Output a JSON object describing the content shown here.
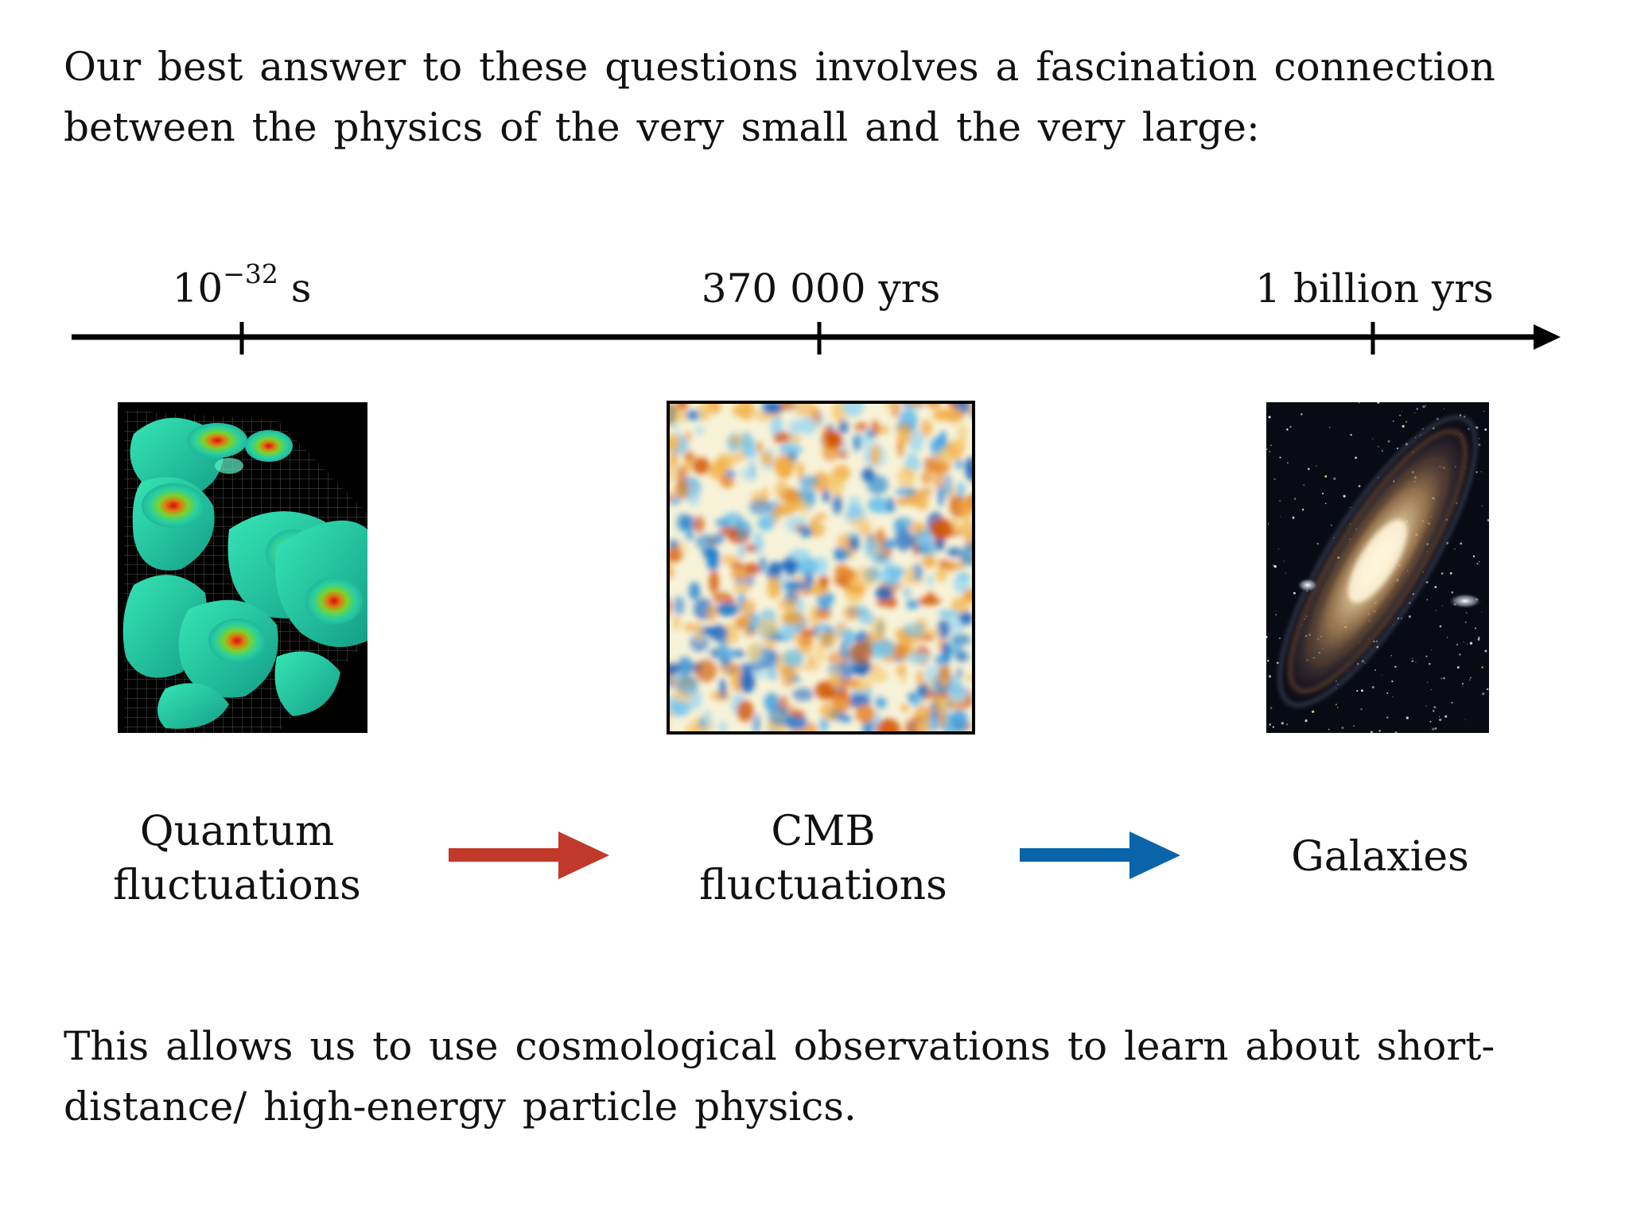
{
  "intro_text": "Our best answer to these questions involves a fascination connection between the physics of the very small and the very large:",
  "outro_text": "This allows us to use cosmological observations to learn about short-distance/ high-energy particle physics.",
  "timeline": {
    "ticks": [
      {
        "base": "10",
        "exponent": "−32",
        "unit": " s"
      },
      {
        "label": "370 000 yrs"
      },
      {
        "label": "1 billion yrs"
      }
    ]
  },
  "stages": [
    {
      "caption_line1": "Quantum",
      "caption_line2": "fluctuations",
      "image": "quantum-fluctuation-render"
    },
    {
      "caption_line1": "CMB",
      "caption_line2": "fluctuations",
      "image": "cmb-temperature-map"
    },
    {
      "caption_line1": "Galaxies",
      "image": "spiral-galaxy-photo"
    }
  ],
  "arrows": [
    {
      "color": "#c0392b"
    },
    {
      "color": "#0a64aa"
    }
  ],
  "colors": {
    "timeline": "#000000",
    "cmb_hot": "#d35400",
    "cmb_cold": "#1a7fd0"
  }
}
